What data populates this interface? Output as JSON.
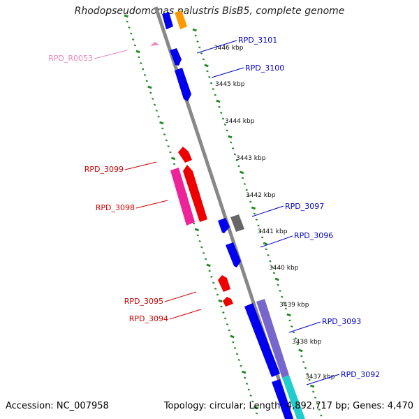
{
  "title": "Rhodopseudomonas palustris BisB5, complete genome",
  "footer": {
    "accession_label": "Accession:",
    "accession": "NC_007958",
    "topology_label": "Topology:",
    "topology": "circular;",
    "length_label": "Length:",
    "length": "4,892,717 bp;",
    "genes_label": "Genes:",
    "genes": "4,470"
  },
  "ticks": [
    "3446 kbp",
    "3445 kbp",
    "3444 kbp",
    "3443 kbp",
    "3442 kbp",
    "3441 kbp",
    "3440 kbp",
    "3439 kbp",
    "3438 kbp",
    "3437 kbp"
  ],
  "gene_labels": [
    {
      "text": "RPD_3101",
      "color": "#0000cc"
    },
    {
      "text": "RPD_3100",
      "color": "#0000cc"
    },
    {
      "text": "RPD_R0053",
      "color": "#ee88bb"
    },
    {
      "text": "RPD_3099",
      "color": "#cc0000"
    },
    {
      "text": "RPD_3098",
      "color": "#cc0000"
    },
    {
      "text": "RPD_3097",
      "color": "#0000cc"
    },
    {
      "text": "RPD_3096",
      "color": "#0000cc"
    },
    {
      "text": "RPD_3095",
      "color": "#cc0000"
    },
    {
      "text": "RPD_3094",
      "color": "#cc0000"
    },
    {
      "text": "RPD_3093",
      "color": "#0000cc"
    },
    {
      "text": "RPD_3092",
      "color": "#0000cc"
    }
  ],
  "colors": {
    "forward_cds": "#0000ee",
    "reverse_cds": "#ee0000",
    "rna": "#ee88bb",
    "pink_cds": "#ee2299",
    "purple_cds": "#7766cc",
    "cyan_cds": "#22cccc",
    "orange_cds": "#ff9900",
    "gray_cds": "#666666",
    "backbone": "#888888",
    "ruler": "#228822"
  }
}
